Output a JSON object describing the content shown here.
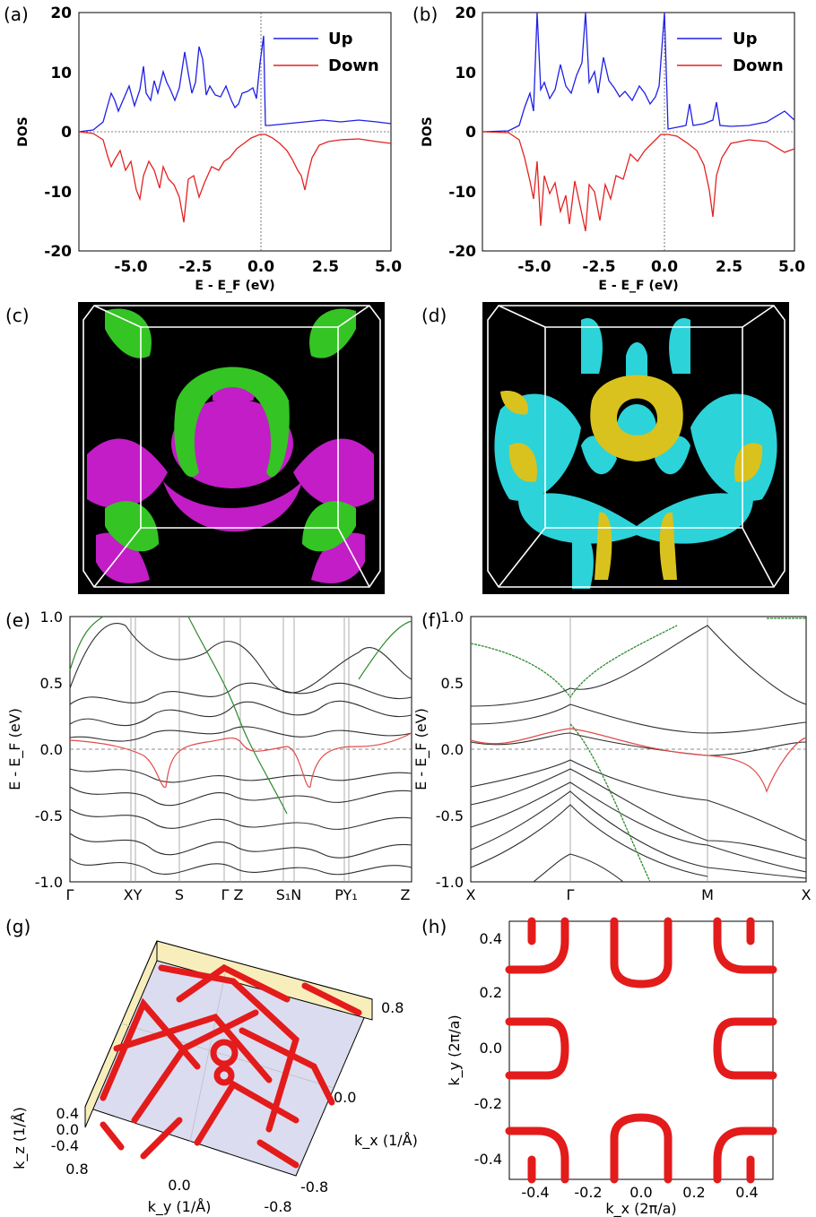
{
  "panels": {
    "a": "(a)",
    "b": "(b)",
    "c": "(c)",
    "d": "(d)",
    "e": "(e)",
    "f": "(f)",
    "g": "(g)",
    "h": "(h)"
  },
  "dos": {
    "ylabel": "DOS",
    "xlabel": "E - E_F (eV)",
    "x_ticks": [
      "-5.0",
      "-2.5",
      "0.0",
      "2.5",
      "5.0"
    ],
    "y_ticks": [
      "20",
      "10",
      "0",
      "-10",
      "-20"
    ],
    "legend": [
      "Up",
      "Down"
    ],
    "colors": {
      "up": "#1f1fe6",
      "down": "#e32222"
    }
  },
  "bands_e": {
    "ylabel": "E - E_F (eV)",
    "y_ticks": [
      "1.0",
      "0.5",
      "0.0",
      "-0.5",
      "-1.0"
    ],
    "k_labels": [
      "Γ",
      "XY",
      "S",
      "Γ Z",
      "S₁N",
      "PY₁",
      "Z"
    ]
  },
  "bands_f": {
    "ylabel": "E - E_F (eV)",
    "y_ticks": [
      "1.0",
      "0.5",
      "0.0",
      "-0.5",
      "-1.0"
    ],
    "k_labels": [
      "X",
      "Γ",
      "M",
      "X"
    ]
  },
  "panel_g": {
    "kz_label": "k_z (1/Å)",
    "ky_label": "k_y (1/Å)",
    "kx_label": "k_x (1/Å)",
    "kz_ticks": [
      "0.4",
      "0.0",
      "-0.4"
    ],
    "ky_ticks": [
      "0.8",
      "0.0",
      "-0.8"
    ],
    "kx_ticks": [
      "0.8",
      "0.0",
      "-0.8"
    ]
  },
  "panel_h": {
    "xlabel": "k_x (2π/a)",
    "ylabel": "k_y (2π/a)",
    "x_ticks": [
      "-0.4",
      "-0.2",
      "0.0",
      "0.2",
      "0.4"
    ],
    "y_ticks": [
      "0.4",
      "0.2",
      "0.0",
      "-0.2",
      "-0.4"
    ]
  },
  "chart_data": [
    {
      "type": "line",
      "panel": "a",
      "xlabel": "E - E_F (eV)",
      "ylabel": "DOS",
      "xlim": [
        -7,
        5
      ],
      "ylim": [
        -20,
        20
      ],
      "legend_position": "top-right",
      "series": [
        {
          "name": "Up",
          "x": [
            -7,
            -6.5,
            -6,
            -5.8,
            -5.5,
            -5,
            -4.5,
            -4,
            -3.5,
            -3,
            -2.6,
            -2.2,
            -1.8,
            -1.5,
            -1,
            -0.5,
            -0.1,
            0,
            0.2,
            1,
            2,
            3,
            4,
            5
          ],
          "y": [
            0,
            1,
            2,
            5,
            9,
            7,
            9,
            8,
            10,
            11,
            14,
            12,
            10,
            9,
            8,
            6,
            8,
            16,
            1,
            1,
            2,
            1.5,
            1.2,
            1.5
          ]
        },
        {
          "name": "Down",
          "x": [
            -7,
            -6.5,
            -6,
            -5.8,
            -5.5,
            -5,
            -4.5,
            -4,
            -3.5,
            -3,
            -2.6,
            -2.2,
            -1.8,
            -1.5,
            -1,
            -0.5,
            0,
            0.5,
            1,
            1.5,
            1.8,
            2,
            3,
            4,
            5
          ],
          "y": [
            0,
            -1,
            -3,
            -6,
            -12,
            -8,
            -10,
            -7,
            -11,
            -14,
            -16,
            -11,
            -9,
            -7,
            -6,
            -4,
            -1,
            -2,
            -4,
            -8,
            -10,
            -4,
            -2,
            -1.5,
            -2
          ]
        }
      ]
    },
    {
      "type": "line",
      "panel": "b",
      "xlabel": "E - E_F (eV)",
      "ylabel": "DOS",
      "xlim": [
        -7,
        5
      ],
      "ylim": [
        -20,
        20
      ],
      "legend_position": "top-right",
      "series": [
        {
          "name": "Up",
          "x": [
            -7,
            -6,
            -5.5,
            -5,
            -4.8,
            -4.5,
            -4,
            -3.5,
            -3,
            -2.6,
            -2.2,
            -1.8,
            -1.5,
            -1,
            -0.5,
            0,
            0.2,
            1,
            1.5,
            2,
            3,
            4,
            5
          ],
          "y": [
            0,
            0,
            3,
            8,
            20,
            9,
            11,
            10,
            12,
            20,
            11,
            12,
            8,
            6,
            8,
            20,
            1,
            4,
            1,
            5,
            1,
            1.5,
            2
          ]
        },
        {
          "name": "Down",
          "x": [
            -7,
            -6,
            -5.5,
            -5,
            -4.8,
            -4.5,
            -4,
            -3.5,
            -3,
            -2.6,
            -2.2,
            -1.8,
            -1.5,
            -1,
            -0.5,
            0,
            0.3,
            1,
            1.5,
            1.7,
            2,
            3,
            4,
            5
          ],
          "y": [
            0,
            -0.5,
            -4,
            -13,
            -16,
            -10,
            -12,
            -9,
            -14,
            -17,
            -11,
            -12,
            -9,
            -8,
            -5,
            -2,
            -1,
            -3,
            -8,
            -15,
            -3,
            -2,
            -2,
            -3
          ]
        }
      ]
    }
  ]
}
